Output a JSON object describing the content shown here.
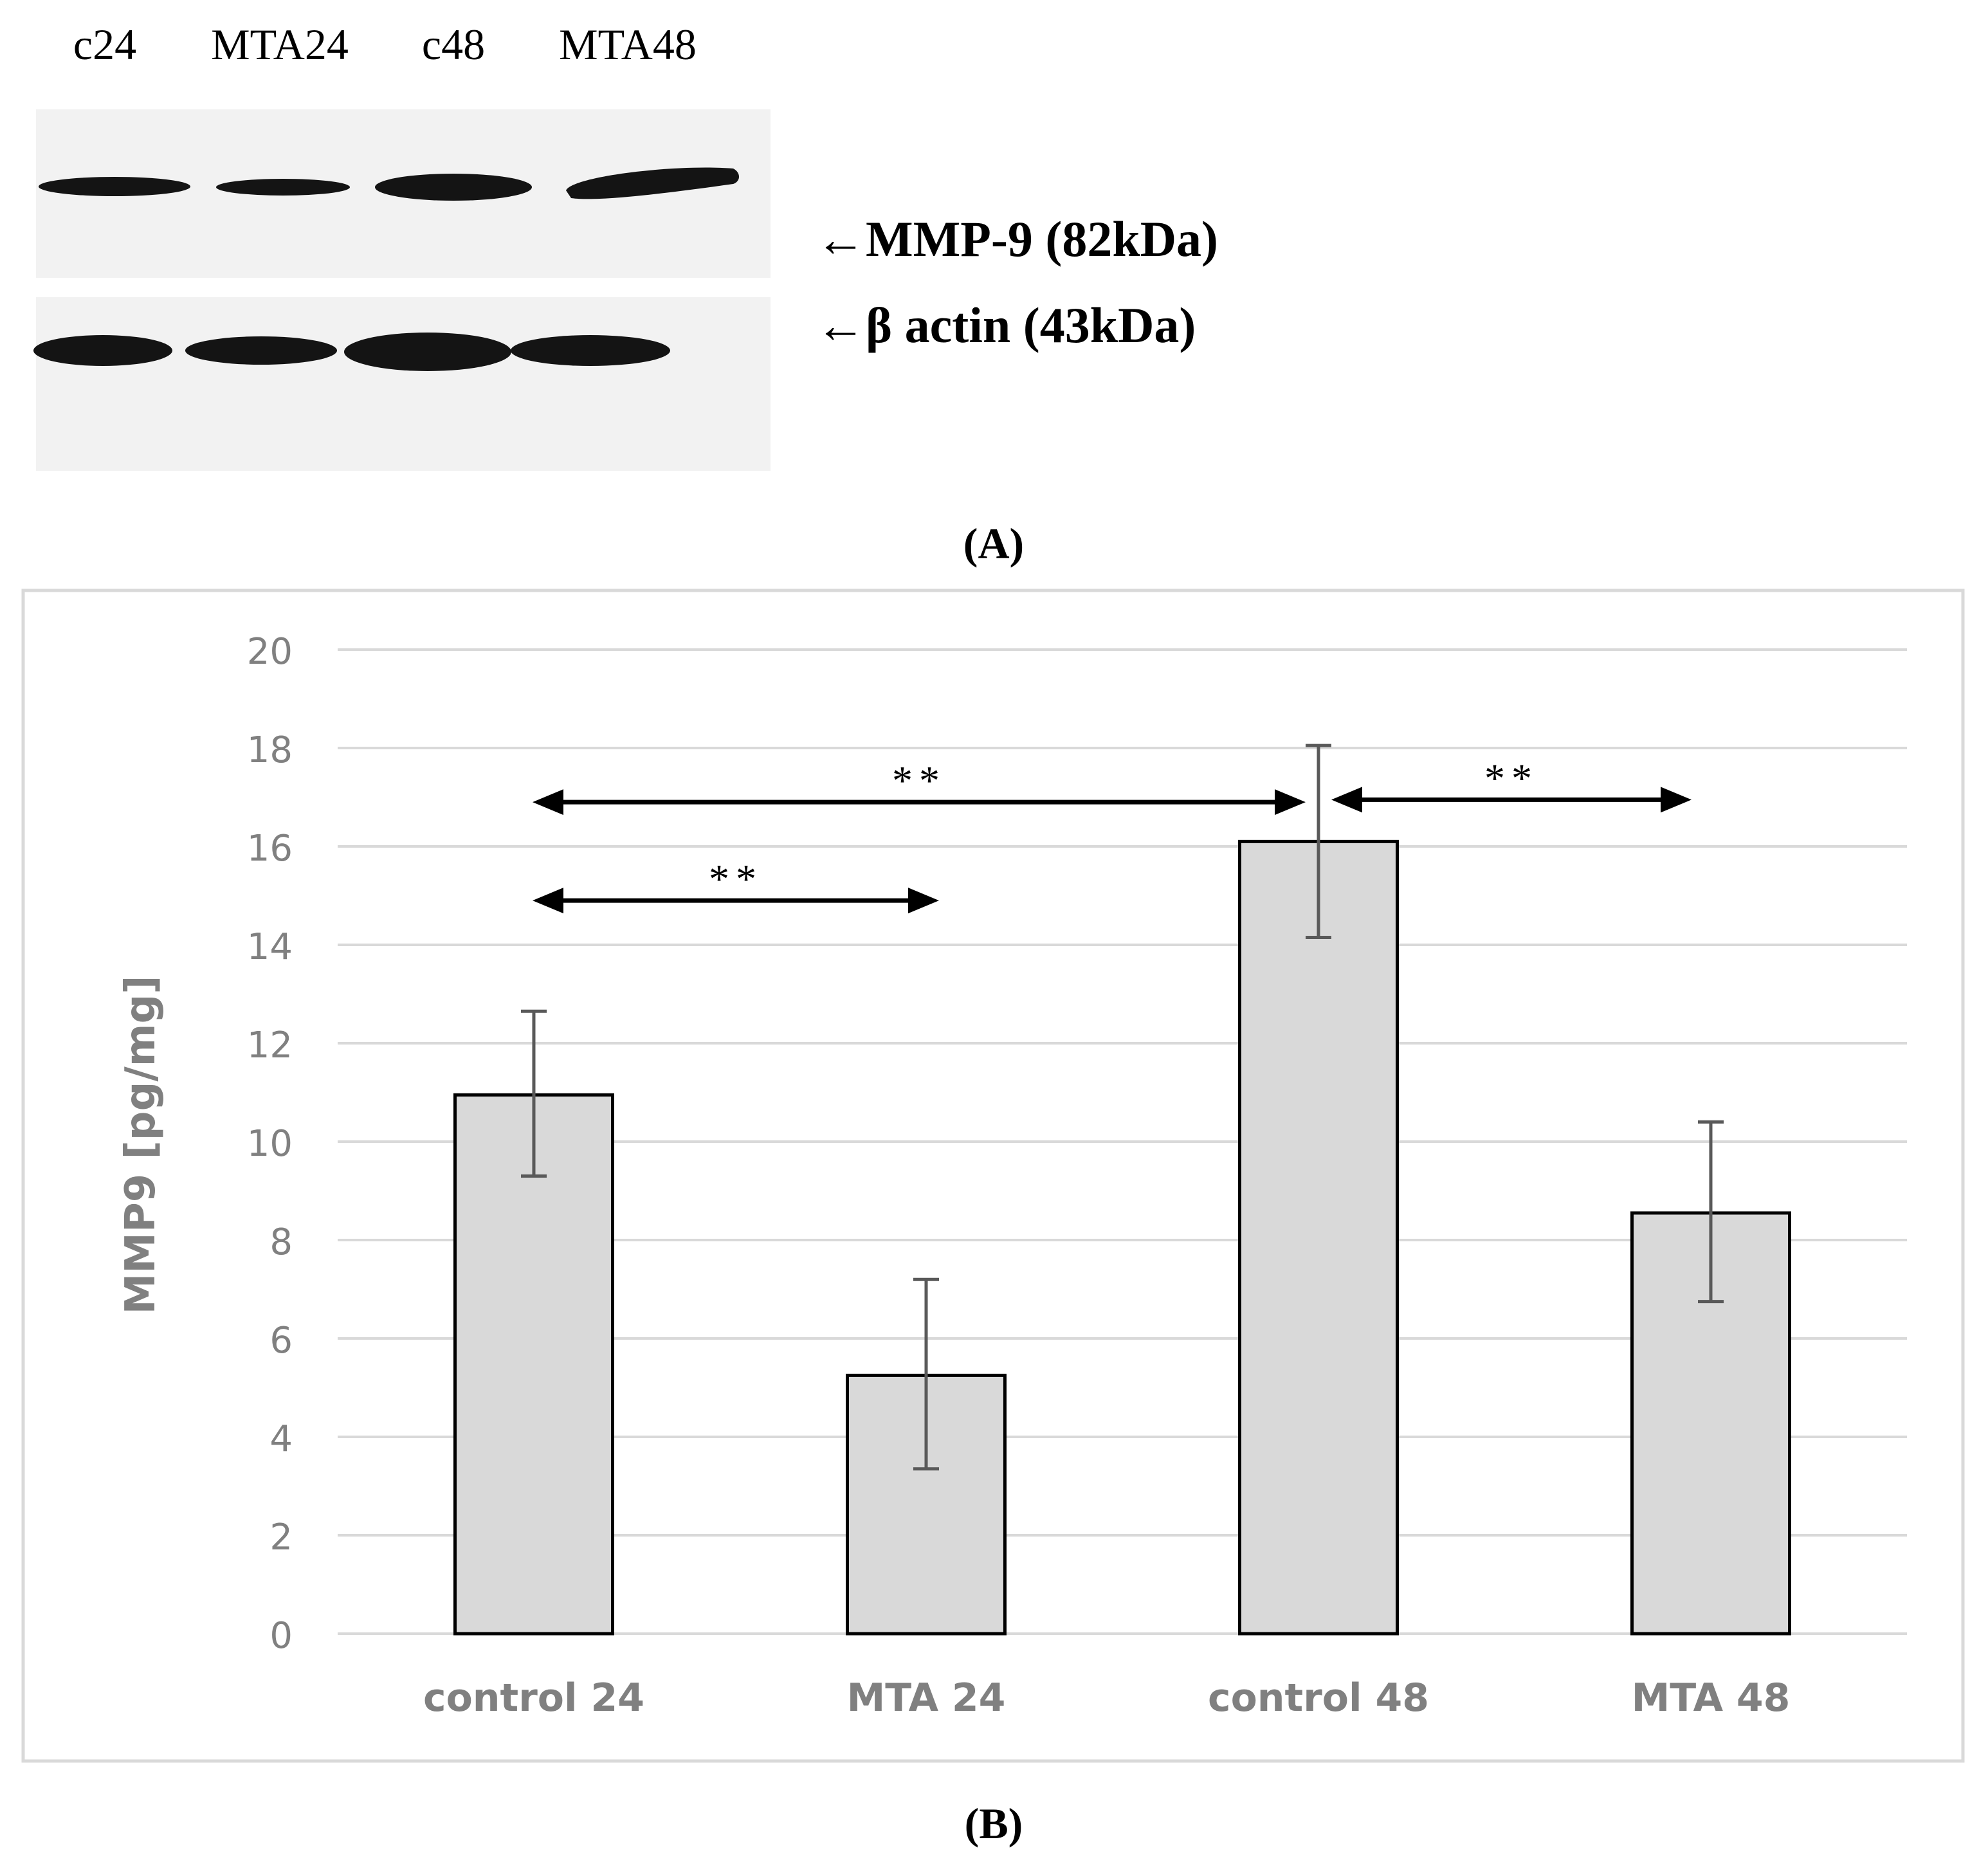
{
  "panel_a": {
    "lane_labels": [
      "c24",
      "MTA24",
      "c48",
      "MTA48"
    ],
    "band_labels": [
      "←MMP-9 (82kDa)",
      "←β actin (43kDa)"
    ],
    "caption": "(A)",
    "colors": {
      "band": "#141414",
      "blot_background": "#f2f2f2"
    }
  },
  "panel_b": {
    "caption": "(B)"
  },
  "chart_data": {
    "type": "bar",
    "categories": [
      "control 24",
      "MTA 24",
      "control 48",
      "MTA 48"
    ],
    "values": [
      10.95,
      5.25,
      16.1,
      8.55
    ],
    "error_low": [
      9.3,
      3.35,
      14.15,
      6.75
    ],
    "error_high": [
      12.65,
      7.2,
      18.05,
      10.4
    ],
    "title": "",
    "xlabel": "",
    "ylabel": "MMP9 [pg/mg]",
    "ylim": [
      0,
      20
    ],
    "yticks": [
      0,
      2,
      4,
      6,
      8,
      10,
      12,
      14,
      16,
      18,
      20
    ],
    "grid": true,
    "legend": "none",
    "significance": [
      {
        "from": "control 24",
        "to": "MTA 24",
        "y": 14.9,
        "label": "**"
      },
      {
        "from": "control 24",
        "to": "control 48",
        "y": 16.9,
        "label": "**"
      },
      {
        "from": "control 48",
        "to": "MTA 48",
        "y": 16.95,
        "label": "**"
      }
    ],
    "colors": {
      "bar_fill": "#d9d9d9",
      "bar_edge": "#000000",
      "error_bar": "#595959",
      "gridline": "#d9d9d9",
      "axis_text": "#808080",
      "frame": "#d9d9d9",
      "annotation": "#000000"
    }
  }
}
